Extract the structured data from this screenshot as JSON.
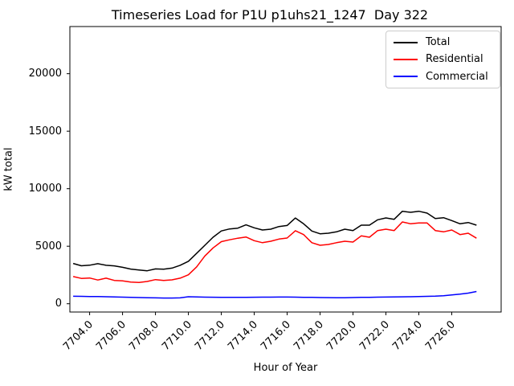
{
  "figure": {
    "title": "Timeseries Load for P1U p1uhs21_1247  Day 322",
    "xlabel": "Hour of Year",
    "ylabel": "kW total"
  },
  "chart_data": {
    "type": "line",
    "title": "Timeseries Load for P1U p1uhs21_1247  Day 322",
    "xlabel": "Hour of Year",
    "ylabel": "kW total",
    "grid": false,
    "xlim": [
      7702.8,
      7729.0
    ],
    "ylim": [
      -720,
      24100
    ],
    "xticks": {
      "values": [
        7704,
        7706,
        7708,
        7710,
        7712,
        7714,
        7716,
        7718,
        7720,
        7722,
        7724,
        7726
      ],
      "labels": [
        "7704.0",
        "7706.0",
        "7708.0",
        "7710.0",
        "7712.0",
        "7714.0",
        "7716.0",
        "7718.0",
        "7720.0",
        "7722.0",
        "7724.0",
        "7726.0"
      ]
    },
    "yticks": {
      "values": [
        0,
        5000,
        10000,
        15000,
        20000
      ],
      "labels": [
        "0",
        "5000",
        "10000",
        "15000",
        "20000"
      ]
    },
    "legend": {
      "position": "upper right",
      "entries": [
        {
          "name": "Total",
          "color": "#000000"
        },
        {
          "name": "Residential",
          "color": "#ff0000"
        },
        {
          "name": "Commercial",
          "color": "#0000ff"
        }
      ]
    },
    "x_hours": [
      7703.0,
      7703.5,
      7704.0,
      7704.5,
      7705.0,
      7705.5,
      7706.0,
      7706.5,
      7707.0,
      7707.5,
      7708.0,
      7708.5,
      7709.0,
      7709.5,
      7710.0,
      7710.5,
      7711.0,
      7711.5,
      7712.0,
      7712.5,
      7713.0,
      7713.5,
      7714.0,
      7714.5,
      7715.0,
      7715.5,
      7716.0,
      7716.5,
      7717.0,
      7717.5,
      7718.0,
      7718.5,
      7719.0,
      7719.5,
      7720.0,
      7720.5,
      7721.0,
      7721.5,
      7722.0,
      7722.5,
      7723.0,
      7723.5,
      7724.0,
      7724.5,
      7725.0,
      7725.5,
      7726.0,
      7726.5,
      7727.0,
      7727.5
    ],
    "series": [
      {
        "name": "Total",
        "color": "#000000",
        "values": [
          3500,
          3300,
          3350,
          3480,
          3340,
          3290,
          3170,
          3010,
          2940,
          2870,
          3030,
          3000,
          3100,
          3340,
          3690,
          4380,
          5080,
          5780,
          6330,
          6500,
          6570,
          6860,
          6600,
          6410,
          6480,
          6710,
          6800,
          7450,
          6950,
          6320,
          6080,
          6130,
          6250,
          6480,
          6360,
          6830,
          6830,
          7300,
          7460,
          7340,
          8040,
          7950,
          8040,
          7880,
          7410,
          7480,
          7230,
          6950,
          7060,
          6830
        ]
      },
      {
        "name": "Residential",
        "color": "#ff0000",
        "values": [
          2360,
          2200,
          2240,
          2060,
          2220,
          2030,
          1990,
          1890,
          1850,
          1940,
          2100,
          2030,
          2080,
          2220,
          2520,
          3200,
          4150,
          4850,
          5400,
          5560,
          5700,
          5800,
          5480,
          5310,
          5430,
          5620,
          5710,
          6350,
          6010,
          5310,
          5080,
          5150,
          5310,
          5430,
          5360,
          5900,
          5780,
          6360,
          6480,
          6360,
          7110,
          6950,
          7020,
          7020,
          6360,
          6250,
          6410,
          6010,
          6130,
          5700
        ]
      },
      {
        "name": "Commercial",
        "color": "#0000ff",
        "values": [
          650,
          640,
          630,
          620,
          610,
          590,
          570,
          550,
          540,
          520,
          510,
          500,
          500,
          510,
          610,
          590,
          575,
          565,
          560,
          555,
          555,
          560,
          565,
          570,
          575,
          580,
          580,
          570,
          560,
          550,
          540,
          530,
          525,
          520,
          535,
          550,
          560,
          570,
          580,
          590,
          600,
          610,
          625,
          640,
          660,
          700,
          760,
          830,
          920,
          1060
        ]
      }
    ]
  }
}
